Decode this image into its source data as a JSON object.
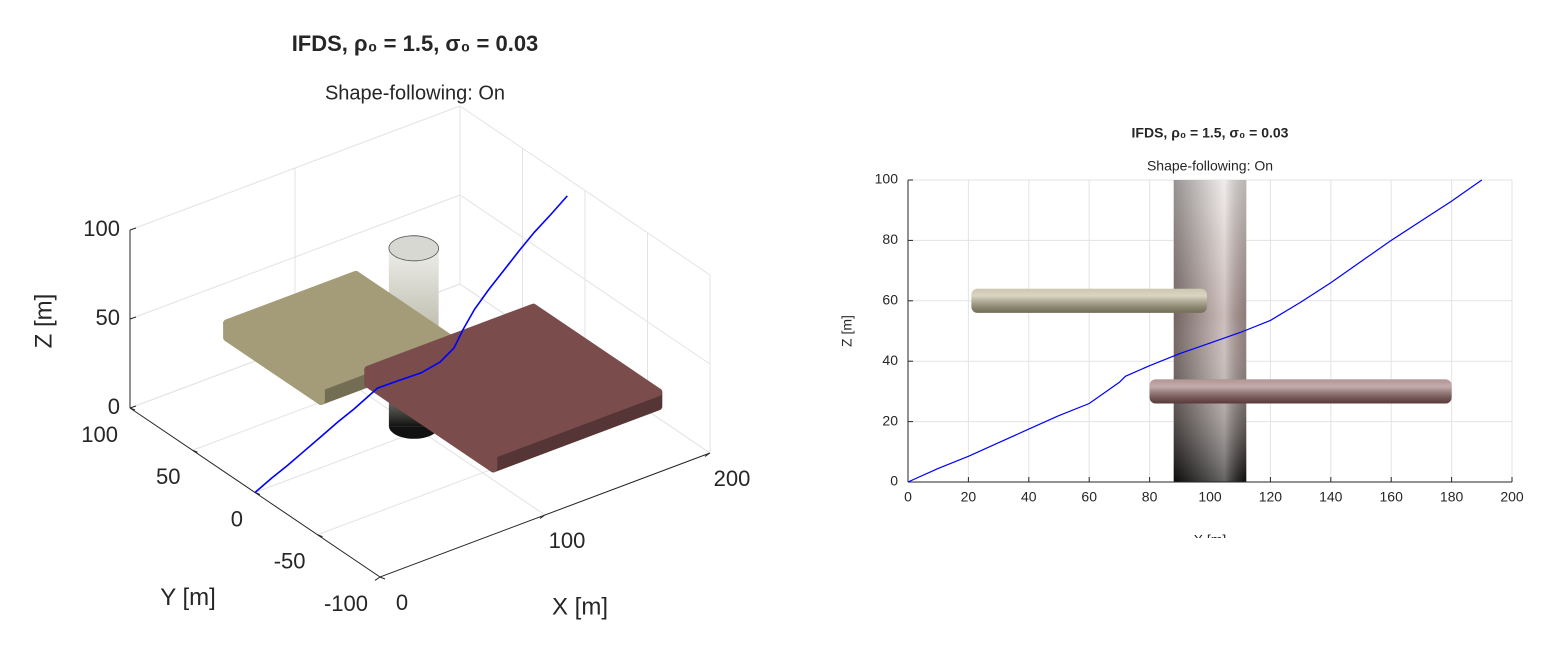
{
  "chart_data": [
    {
      "type": "line3d",
      "title": "IFDS, ρ₀ = 1.5, σ₀ = 0.03",
      "subtitle": "Shape-following: On",
      "xlabel": "X [m]",
      "ylabel": "Y [m]",
      "zlabel": "Z [m]",
      "xlim": [
        0,
        200
      ],
      "ylim": [
        -100,
        100
      ],
      "zlim": [
        0,
        100
      ],
      "xticks": [
        0,
        100,
        200
      ],
      "yticks": [
        -100,
        -50,
        0,
        50,
        100
      ],
      "zticks": [
        0,
        50,
        100
      ],
      "grid": true,
      "color": "#0000ff",
      "x": [
        0,
        10,
        20,
        30,
        40,
        50,
        60,
        70,
        72,
        80,
        90,
        100,
        110,
        120,
        130,
        140,
        150,
        160,
        170,
        180,
        190
      ],
      "y": [
        0,
        0,
        0,
        0,
        0,
        0,
        0,
        -2,
        -3,
        -8,
        -14,
        -16,
        -14,
        -8,
        -4,
        -2,
        -1,
        0,
        1,
        1,
        1
      ],
      "z": [
        0,
        4.5,
        8.5,
        13,
        17.5,
        22,
        26,
        33,
        35,
        38.5,
        42.5,
        46,
        49.5,
        53.5,
        59.5,
        66,
        73,
        80,
        86.5,
        93,
        100
      ],
      "obstacles": [
        {
          "shape": "cylinder",
          "center": [
            100,
            5
          ],
          "radius": 12,
          "zlim": [
            0,
            100
          ],
          "color": "#b9b8a8"
        },
        {
          "shape": "box",
          "xlim": [
            21,
            99
          ],
          "ylim": [
            -25,
            50
          ],
          "zlim": [
            56,
            64
          ],
          "color": "#a49c78"
        },
        {
          "shape": "box",
          "xlim": [
            80,
            180
          ],
          "ylim": [
            -85,
            15
          ],
          "zlim": [
            26,
            34
          ],
          "color": "#7a4c4c"
        }
      ]
    },
    {
      "type": "line",
      "title": "IFDS, ρ₀ = 1.5, σ₀ = 0.03",
      "subtitle": "Shape-following: On",
      "xlabel": "X [m]",
      "ylabel": "Z [m]",
      "xlim": [
        0,
        200
      ],
      "ylim": [
        0,
        100
      ],
      "xticks": [
        0,
        20,
        40,
        60,
        80,
        100,
        120,
        140,
        160,
        180,
        200
      ],
      "yticks": [
        0,
        20,
        40,
        60,
        80,
        100
      ],
      "grid": true,
      "color": "#0000ff",
      "x": [
        0,
        10,
        20,
        30,
        40,
        50,
        60,
        70,
        72,
        80,
        90,
        100,
        110,
        120,
        130,
        140,
        150,
        160,
        170,
        180,
        190
      ],
      "values": [
        0,
        4.5,
        8.5,
        13,
        17.5,
        22,
        26,
        33,
        35,
        38.5,
        42.5,
        46,
        49.5,
        53.5,
        59.5,
        66,
        73,
        80,
        86.5,
        93,
        100
      ],
      "obstacles": [
        {
          "shape": "cylinder",
          "center": [
            100,
            5
          ],
          "radius": 12,
          "zlim": [
            0,
            100
          ],
          "color": "#a88f8a"
        },
        {
          "shape": "box",
          "xlim": [
            21,
            99
          ],
          "ylim": [
            -25,
            50
          ],
          "zlim": [
            56,
            64
          ],
          "color": "#b3aa86"
        },
        {
          "shape": "box",
          "xlim": [
            80,
            180
          ],
          "ylim": [
            -85,
            15
          ],
          "zlim": [
            26,
            34
          ],
          "color": "#8a5a5a"
        }
      ]
    }
  ]
}
